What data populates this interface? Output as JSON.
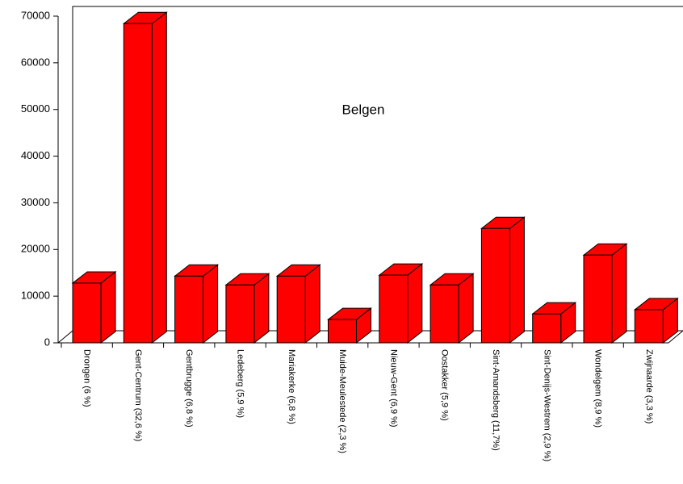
{
  "chart_data": {
    "type": "bar",
    "title": "Belgen",
    "categories": [
      "Drongen (6 %)",
      "Gent-Centrum (32,6 %)",
      "Gentbrugge (6,8 %)",
      "Ledeberg (5,9 %)",
      "Mariakerke (6,8 %)",
      "Muide-Meulestede (2,3 %)",
      "Nieuw-Gent (6,9 %)",
      "Oostakker (5,9 %)",
      "Sint-Amandsberg (11,7%)",
      "Sint-Denijs-Westrem (2,9 %)",
      "Wondelgem (8,9 %)",
      "Zwijnaarde (3,3 %)"
    ],
    "values": [
      12800,
      68400,
      14300,
      12400,
      14300,
      5000,
      14500,
      12400,
      24500,
      6200,
      18800,
      7100
    ],
    "color": "#ff0000",
    "ylim": [
      0,
      70000
    ],
    "yticks": [
      0,
      10000,
      20000,
      30000,
      40000,
      50000,
      60000,
      70000
    ]
  }
}
